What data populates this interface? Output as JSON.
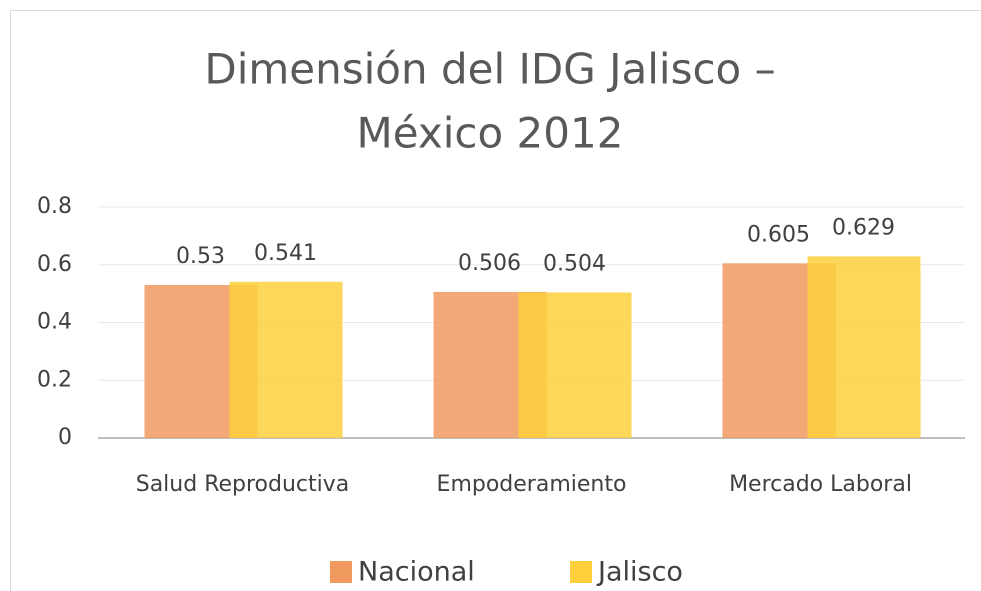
{
  "chart_data": {
    "type": "bar",
    "title": [
      "Dimensión del IDG Jalisco –",
      "México 2012"
    ],
    "categories": [
      "Salud Reproductiva",
      "Empoderamiento",
      "Mercado Laboral"
    ],
    "series": [
      {
        "name": "Nacional",
        "color": "#f19a5f",
        "values": [
          0.53,
          0.506,
          0.605
        ]
      },
      {
        "name": "Jalisco",
        "color": "#fdd03c",
        "values": [
          0.541,
          0.504,
          0.629
        ]
      }
    ],
    "ylim": [
      0,
      0.8
    ],
    "yticks": [
      0,
      0.2,
      0.4,
      0.6,
      0.8
    ],
    "grid": true,
    "legend": "bottom"
  }
}
